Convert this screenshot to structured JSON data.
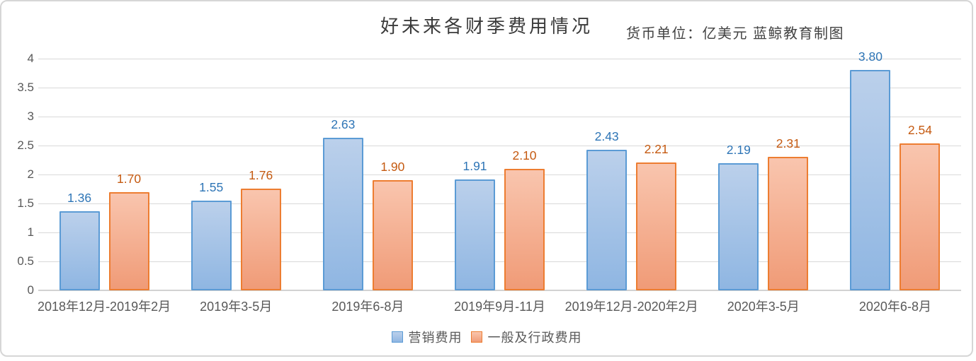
{
  "header": {
    "title": "好未来各财季费用情况",
    "subtitle": "货币单位：亿美元  蓝鲸教育制图"
  },
  "chart_data": {
    "type": "bar",
    "title": "好未来各财季费用情况",
    "subtitle": "货币单位：亿美元 蓝鲸教育制图",
    "unit": "亿美元",
    "categories": [
      "2018年12月-2019年2月",
      "2019年3-5月",
      "2019年6-8月",
      "2019年9月-11月",
      "2019年12月-2020年2月",
      "2020年3-5月",
      "2020年6-8月"
    ],
    "series": [
      {
        "name": "营销费用",
        "values": [
          1.36,
          1.55,
          2.63,
          1.91,
          2.43,
          2.19,
          3.8
        ],
        "value_labels": [
          "1.36",
          "1.55",
          "2.63",
          "1.91",
          "2.43",
          "2.19",
          "3.80"
        ],
        "border_color": "#5B9BD5",
        "fill_top": "#BBD0EB",
        "fill_bottom": "#8FB6E2",
        "label_color": "#2E75B6"
      },
      {
        "name": "一般及行政费用",
        "values": [
          1.7,
          1.76,
          1.9,
          2.1,
          2.21,
          2.31,
          2.54
        ],
        "value_labels": [
          "1.70",
          "1.76",
          "1.90",
          "2.10",
          "2.21",
          "2.31",
          "2.54"
        ],
        "border_color": "#ED7D31",
        "fill_top": "#F9C5AE",
        "fill_bottom": "#F09B77",
        "label_color": "#C55A11"
      }
    ],
    "y_ticks": [
      "0",
      "0.5",
      "1",
      "1.5",
      "2",
      "2.5",
      "3",
      "3.5",
      "4"
    ],
    "ylim": [
      0,
      4
    ],
    "grid": true,
    "legend_position": "bottom",
    "xlabel": "",
    "ylabel": ""
  },
  "colors": {
    "grid_line": "#D9D9D9",
    "axis_line": "#D2D2D2",
    "axis_text": "#595959",
    "title_text": "#3A3A3A",
    "background": "#FFFFFF",
    "card_border": "#D6D6D6"
  }
}
